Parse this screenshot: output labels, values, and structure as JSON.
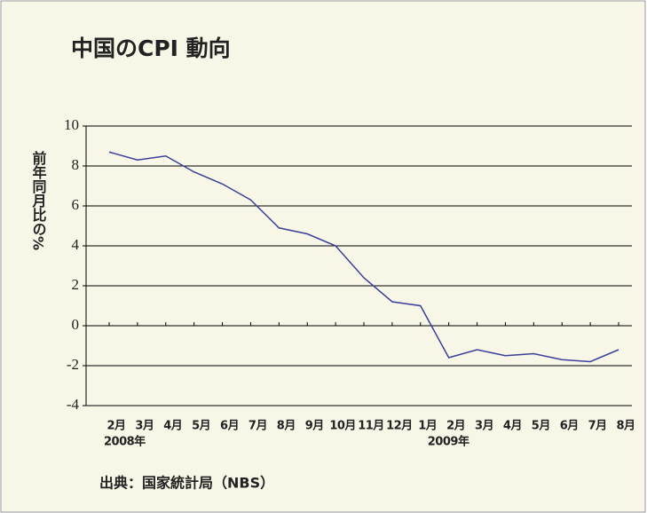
{
  "chart_data": {
    "type": "line",
    "title": "中国のCPI 動向",
    "y_label": "前年同月比の%",
    "source": "出典：国家統計局（NBS）",
    "categories": [
      "2月",
      "3月",
      "4月",
      "5月",
      "6月",
      "7月",
      "8月",
      "9月",
      "10月",
      "11月",
      "12月",
      "1月",
      "2月",
      "3月",
      "4月",
      "5月",
      "6月",
      "7月",
      "8月"
    ],
    "year_labels": [
      "2008年",
      "2009年"
    ],
    "series": [
      {
        "name": "CPI",
        "color": "#3b3f9a",
        "values": [
          8.7,
          8.3,
          8.5,
          7.7,
          7.1,
          6.3,
          4.9,
          4.6,
          4.0,
          2.4,
          1.2,
          1.0,
          -1.6,
          -1.2,
          -1.5,
          -1.4,
          -1.7,
          -1.8,
          -1.2
        ]
      }
    ],
    "ylim": [
      -4,
      10
    ],
    "yticks": [
      10,
      8,
      6,
      4,
      2,
      0,
      -2,
      -4
    ],
    "grid": true
  }
}
